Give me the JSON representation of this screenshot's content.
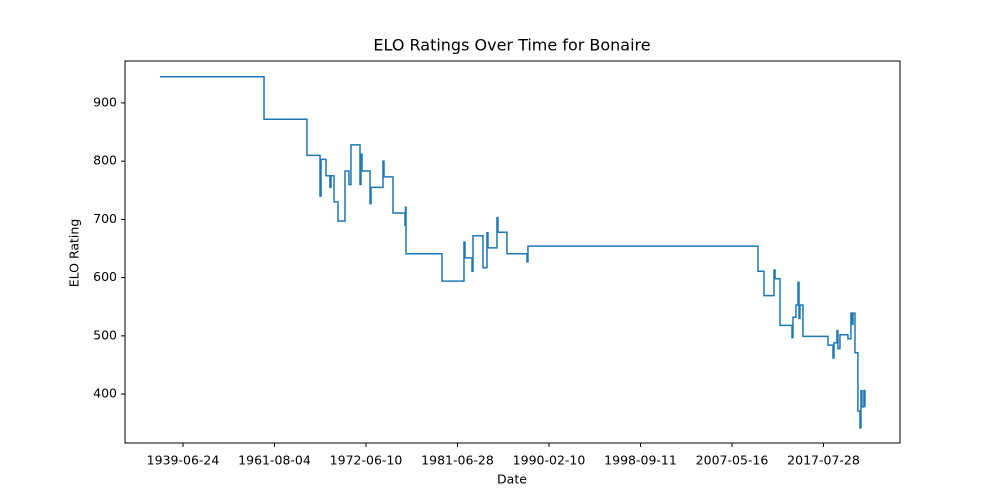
{
  "chart_data": {
    "type": "line",
    "title": "ELO Ratings Over Time for Bonaire",
    "xlabel": "Date",
    "ylabel": "ELO Rating",
    "step": true,
    "x": [
      "1933-12-01",
      "1959-01-22",
      "1965-06-10",
      "1966-12-28",
      "1967-02-10",
      "1967-09-13",
      "1968-03-03",
      "1968-04-16",
      "1968-08-25",
      "1969-02-14",
      "1969-12-13",
      "1970-06-03",
      "1970-08-29",
      "1971-09-24",
      "1971-11-06",
      "1971-12-20",
      "1972-11-03",
      "1972-12-09",
      "1974-02-14",
      "1974-03-22",
      "1975-02-10",
      "1976-04-19",
      "1976-05-07",
      "1976-05-25",
      "1979-12-16",
      "1982-02-06",
      "1982-03-14",
      "1982-11-10",
      "1982-12-13",
      "1983-11-22",
      "1984-04-08",
      "1984-05-11",
      "1985-03-18",
      "1985-04-20",
      "1986-02-24",
      "1988-01-15",
      "1988-02-17",
      "2010-04-08",
      "2010-12-09",
      "2012-01-19",
      "2012-03-03",
      "2012-09-21",
      "2014-01-22",
      "2014-03-03",
      "2014-07-02",
      "2014-09-24",
      "2014-11-03",
      "2014-12-13",
      "2015-04-13",
      "2018-01-26",
      "2018-08-18",
      "2018-09-27",
      "2019-01-26",
      "2019-03-07",
      "2019-05-29",
      "2020-04-19",
      "2020-08-18",
      "2020-09-27",
      "2020-11-09",
      "2021-01-30",
      "2021-05-30",
      "2021-08-22",
      "2021-10-01",
      "2021-11-10",
      "2022-01-30",
      "2022-03-12"
    ],
    "series": [
      {
        "name": "ELO Rating",
        "color": "#1f77b4",
        "values": [
          945,
          872,
          810,
          740,
          803,
          775,
          755,
          775,
          730,
          697,
          783,
          760,
          828,
          760,
          812,
          783,
          727,
          755,
          800,
          773,
          711,
          690,
          721,
          641,
          594,
          661,
          634,
          611,
          672,
          617,
          677,
          651,
          703,
          678,
          641,
          627,
          654,
          611,
          569,
          613,
          598,
          518,
          497,
          532,
          553,
          592,
          530,
          553,
          499,
          484,
          462,
          488,
          509,
          478,
          502,
          495,
          539,
          520,
          539,
          471,
          371,
          342,
          406,
          378,
          406,
          378
        ]
      }
    ],
    "xlim": [
      "1925-06-17",
      "2026-02-05"
    ],
    "xticks": [
      "1939-06-24",
      "1961-08-04",
      "1972-06-10",
      "1981-06-28",
      "1990-02-10",
      "1998-09-11",
      "2007-05-16",
      "2017-07-28"
    ],
    "ylim": [
      316,
      972
    ],
    "yticks": [
      400,
      500,
      600,
      700,
      800,
      900
    ],
    "grid": false
  }
}
